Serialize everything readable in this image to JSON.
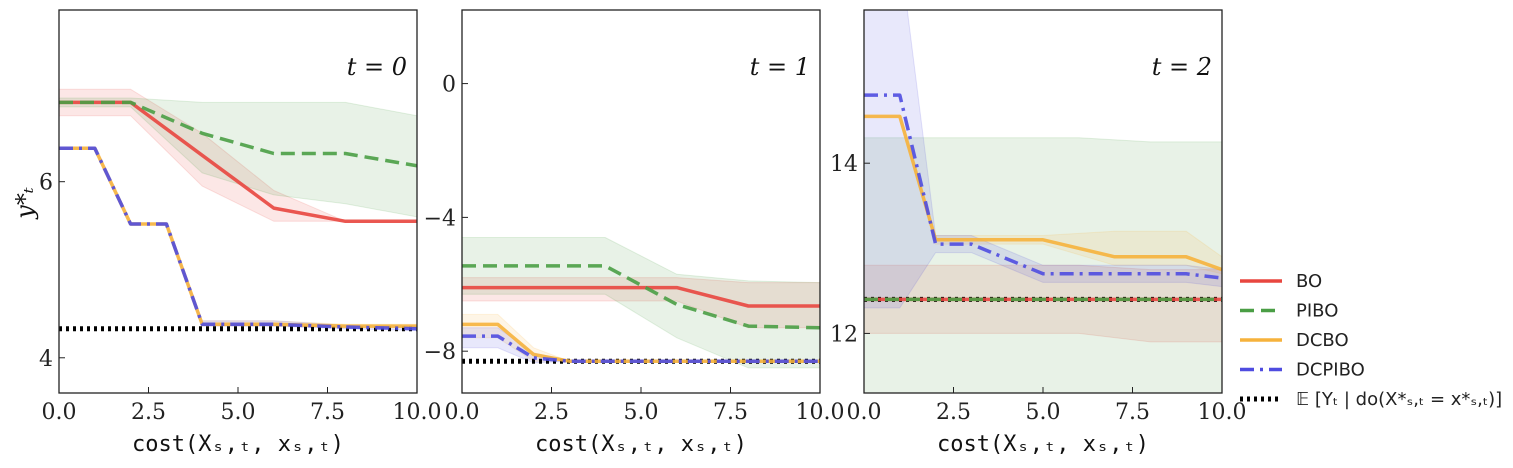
{
  "legend": [
    {
      "key": "bo",
      "label": "BO",
      "color": "#e8463f",
      "dash": "solid"
    },
    {
      "key": "pibo",
      "label": "PIBO",
      "color": "#4a9e45",
      "dash": "dashed"
    },
    {
      "key": "dcbo",
      "label": "DCBO",
      "color": "#f6b23c",
      "dash": "solid"
    },
    {
      "key": "dcpibo",
      "label": "DCPIBO",
      "color": "#4f4ce0",
      "dash": "dashdot"
    },
    {
      "key": "opt",
      "label": "𝔼 [Yₜ | do(X*ₛ,ₜ = x*ₛ,ₜ)]",
      "color": "#000000",
      "dash": "dotted"
    }
  ],
  "ylabel": "y*ₜ",
  "chart_data": [
    {
      "type": "line",
      "title": "t = 0",
      "xlabel": "cost(Xₛ,ₜ, xₛ,ₜ)",
      "xlim": [
        0,
        10
      ],
      "ylim": [
        3.6,
        7.95
      ],
      "xticks": [
        "0.0",
        "2.5",
        "5.0",
        "7.5",
        "10.0"
      ],
      "xtick_values": [
        0,
        2.5,
        5,
        7.5,
        10
      ],
      "yticks": [
        "4",
        "6"
      ],
      "ytick_values": [
        4,
        6
      ],
      "optimum": 4.33,
      "series": [
        {
          "key": "bo",
          "x": [
            0,
            2,
            4,
            6,
            8,
            10
          ],
          "y": [
            6.9,
            6.9,
            6.3,
            5.7,
            5.55,
            5.55
          ],
          "lower": [
            6.75,
            6.75,
            5.95,
            5.55,
            5.55,
            5.55
          ],
          "upper": [
            7.05,
            7.05,
            6.55,
            5.9,
            5.55,
            5.55
          ]
        },
        {
          "key": "pibo",
          "x": [
            0,
            2,
            4,
            6,
            8,
            10
          ],
          "y": [
            6.9,
            6.9,
            6.55,
            6.32,
            6.32,
            6.18
          ],
          "lower": [
            6.85,
            6.85,
            6.1,
            5.85,
            5.75,
            5.6
          ],
          "upper": [
            6.95,
            6.95,
            6.9,
            6.9,
            6.9,
            6.75
          ]
        },
        {
          "key": "dcbo",
          "x": [
            0,
            1,
            2,
            3,
            4,
            6,
            8,
            10
          ],
          "y": [
            6.38,
            6.38,
            5.52,
            5.52,
            4.38,
            4.38,
            4.36,
            4.36
          ],
          "lower": [
            6.38,
            6.38,
            5.52,
            5.52,
            4.36,
            4.36,
            4.34,
            4.34
          ],
          "upper": [
            6.38,
            6.38,
            5.52,
            5.52,
            4.42,
            4.42,
            4.38,
            4.38
          ]
        },
        {
          "key": "dcpibo",
          "x": [
            0,
            1,
            2,
            3,
            4,
            6,
            8,
            10
          ],
          "y": [
            6.38,
            6.38,
            5.52,
            5.52,
            4.38,
            4.38,
            4.35,
            4.33
          ],
          "lower": [
            6.38,
            6.38,
            5.52,
            5.52,
            4.36,
            4.36,
            4.33,
            4.31
          ],
          "upper": [
            6.38,
            6.38,
            5.52,
            5.52,
            4.42,
            4.42,
            4.37,
            4.35
          ]
        }
      ]
    },
    {
      "type": "line",
      "title": "t = 1",
      "xlabel": "cost(Xₛ,ₜ, xₛ,ₜ)",
      "xlim": [
        0,
        10
      ],
      "ylim": [
        -9.25,
        2.2
      ],
      "xticks": [
        "0.0",
        "2.5",
        "5.0",
        "7.5",
        "10.0"
      ],
      "xtick_values": [
        0,
        2.5,
        5,
        7.5,
        10
      ],
      "yticks": [
        "0",
        "−4",
        "−8"
      ],
      "ytick_values": [
        0,
        -4,
        -8
      ],
      "optimum": -8.3,
      "series": [
        {
          "key": "bo",
          "x": [
            0,
            2,
            4,
            6,
            8,
            10
          ],
          "y": [
            -6.1,
            -6.1,
            -6.1,
            -6.1,
            -6.65,
            -6.65
          ],
          "lower": [
            -6.5,
            -6.5,
            -6.5,
            -6.5,
            -7.3,
            -7.3
          ],
          "upper": [
            -5.8,
            -5.8,
            -5.8,
            -5.8,
            -5.95,
            -5.95
          ]
        },
        {
          "key": "pibo",
          "x": [
            0,
            2,
            4,
            6,
            8,
            10
          ],
          "y": [
            -5.45,
            -5.45,
            -5.45,
            -6.6,
            -7.25,
            -7.3
          ],
          "lower": [
            -6.3,
            -6.3,
            -6.3,
            -7.6,
            -8.5,
            -8.5
          ],
          "upper": [
            -4.6,
            -4.6,
            -4.6,
            -5.7,
            -5.9,
            -5.95
          ]
        },
        {
          "key": "dcbo",
          "x": [
            0,
            1,
            2,
            3,
            4,
            6,
            8,
            10
          ],
          "y": [
            -7.2,
            -7.2,
            -8.1,
            -8.3,
            -8.3,
            -8.3,
            -8.3,
            -8.3
          ],
          "lower": [
            -7.6,
            -7.6,
            -8.3,
            -8.3,
            -8.3,
            -8.3,
            -8.3,
            -8.3
          ],
          "upper": [
            -6.9,
            -6.9,
            -7.9,
            -8.3,
            -8.3,
            -8.3,
            -8.3,
            -8.3
          ]
        },
        {
          "key": "dcpibo",
          "x": [
            0,
            1,
            2,
            3,
            4,
            6,
            8,
            10
          ],
          "y": [
            -7.55,
            -7.55,
            -8.2,
            -8.3,
            -8.3,
            -8.3,
            -8.3,
            -8.3
          ],
          "lower": [
            -7.9,
            -7.9,
            -8.35,
            -8.3,
            -8.3,
            -8.3,
            -8.3,
            -8.3
          ],
          "upper": [
            -7.3,
            -7.3,
            -8.05,
            -8.3,
            -8.3,
            -8.3,
            -8.3,
            -8.3
          ]
        }
      ]
    },
    {
      "type": "line",
      "title": "t = 2",
      "xlabel": "cost(Xₛ,ₜ, xₛ,ₜ)",
      "xlim": [
        0,
        10
      ],
      "ylim": [
        11.3,
        15.8
      ],
      "xticks": [
        "0.0",
        "2.5",
        "5.0",
        "7.5",
        "10.0"
      ],
      "xtick_values": [
        0,
        2.5,
        5,
        7.5,
        10
      ],
      "yticks": [
        "14",
        "12"
      ],
      "ytick_values": [
        14,
        12
      ],
      "optimum": 12.4,
      "series": [
        {
          "key": "bo",
          "x": [
            0,
            2,
            4,
            6,
            8,
            10
          ],
          "y": [
            12.4,
            12.4,
            12.4,
            12.4,
            12.4,
            12.4
          ],
          "lower": [
            12.0,
            12.0,
            12.0,
            12.0,
            11.9,
            11.9
          ],
          "upper": [
            12.8,
            12.8,
            12.8,
            12.8,
            12.75,
            12.75
          ]
        },
        {
          "key": "pibo",
          "x": [
            0,
            2,
            4,
            6,
            8,
            10
          ],
          "y": [
            12.4,
            12.4,
            12.4,
            12.4,
            12.4,
            12.4
          ],
          "lower": [
            11.3,
            11.3,
            11.3,
            11.3,
            11.3,
            11.3
          ],
          "upper": [
            14.3,
            14.3,
            14.3,
            14.3,
            14.25,
            14.25
          ]
        },
        {
          "key": "dcbo",
          "x": [
            0,
            1,
            2,
            3,
            5,
            7,
            9,
            10
          ],
          "y": [
            14.55,
            14.55,
            13.1,
            13.1,
            13.1,
            12.9,
            12.9,
            12.75
          ],
          "lower": [
            14.55,
            14.55,
            13.05,
            13.05,
            13.05,
            12.8,
            12.8,
            12.7
          ],
          "upper": [
            14.55,
            14.55,
            13.15,
            13.15,
            13.15,
            13.2,
            13.2,
            12.9
          ]
        },
        {
          "key": "dcpibo",
          "x": [
            0,
            1,
            2,
            3,
            5,
            7,
            9,
            10
          ],
          "y": [
            14.8,
            14.8,
            13.05,
            13.05,
            12.7,
            12.7,
            12.7,
            12.65
          ],
          "lower": [
            12.3,
            12.3,
            12.95,
            12.95,
            12.6,
            12.6,
            12.6,
            12.55
          ],
          "upper": [
            16.5,
            16.5,
            13.15,
            13.15,
            12.8,
            12.8,
            12.8,
            12.75
          ]
        }
      ]
    }
  ]
}
